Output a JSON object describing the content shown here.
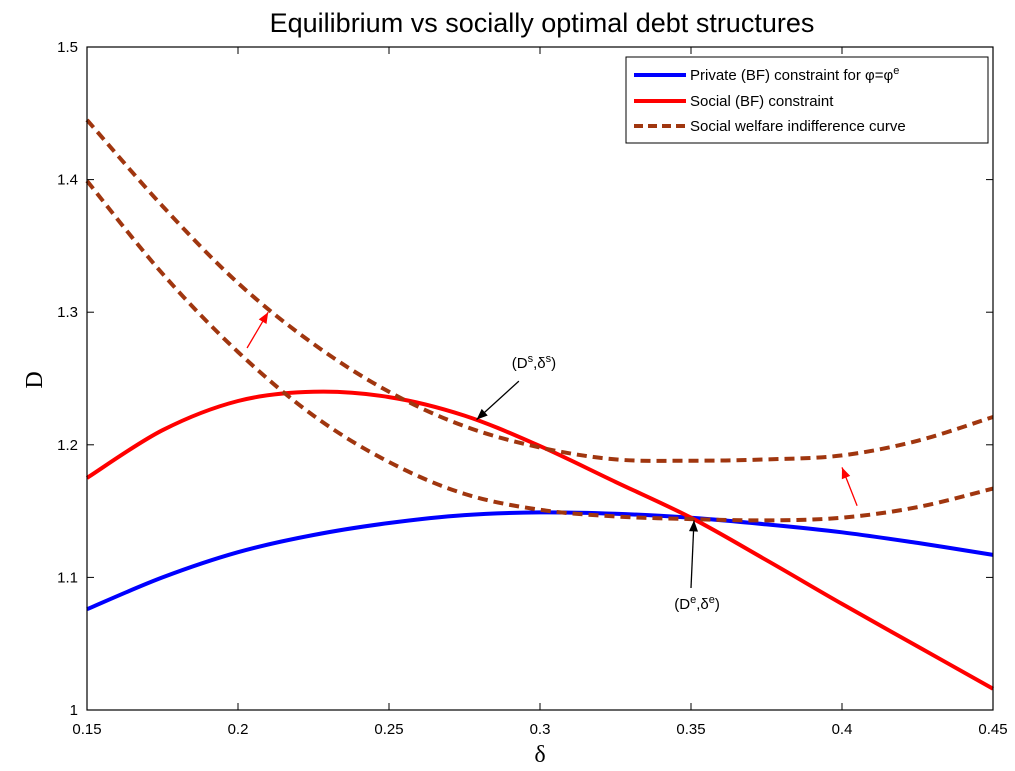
{
  "chart_data": {
    "type": "line",
    "title": "Equilibrium vs socially optimal debt structures",
    "xlabel": "δ",
    "ylabel": "D",
    "xlim": [
      0.15,
      0.45
    ],
    "ylim": [
      1.0,
      1.5
    ],
    "xticks": [
      "0.15",
      "0.2",
      "0.25",
      "0.3",
      "0.35",
      "0.4",
      "0.45"
    ],
    "yticks": [
      "1",
      "1.1",
      "1.2",
      "1.3",
      "1.4",
      "1.5"
    ],
    "grid": false,
    "legend_position": "top-right",
    "series": [
      {
        "name": "Private (BF) constraint for φ=φ",
        "name_sup": "e",
        "color": "#0000ff",
        "style": "solid",
        "x": [
          0.15,
          0.175,
          0.2,
          0.225,
          0.25,
          0.275,
          0.3,
          0.325,
          0.35,
          0.375,
          0.4,
          0.425,
          0.45
        ],
        "y": [
          1.076,
          1.1,
          1.119,
          1.132,
          1.141,
          1.147,
          1.149,
          1.148,
          1.145,
          1.14,
          1.134,
          1.126,
          1.117
        ]
      },
      {
        "name": "Social (BF) constraint",
        "color": "#ff0000",
        "style": "solid",
        "x": [
          0.15,
          0.175,
          0.2,
          0.225,
          0.25,
          0.275,
          0.3,
          0.325,
          0.35,
          0.375,
          0.4,
          0.425,
          0.45
        ],
        "y": [
          1.175,
          1.211,
          1.233,
          1.24,
          1.236,
          1.222,
          1.199,
          1.172,
          1.145,
          1.113,
          1.08,
          1.048,
          1.016
        ]
      },
      {
        "name": "Social welfare indifference curve",
        "color": "#a0360f",
        "style": "dashed",
        "x": [
          0.15,
          0.175,
          0.2,
          0.225,
          0.25,
          0.275,
          0.3,
          0.325,
          0.35,
          0.375,
          0.4,
          0.425,
          0.45
        ],
        "y": [
          1.445,
          1.38,
          1.322,
          1.276,
          1.24,
          1.214,
          1.198,
          1.189,
          1.188,
          1.189,
          1.192,
          1.203,
          1.221
        ]
      },
      {
        "name": "",
        "color": "#a0360f",
        "style": "dashed",
        "x": [
          0.15,
          0.175,
          0.2,
          0.225,
          0.25,
          0.275,
          0.3,
          0.325,
          0.35,
          0.375,
          0.4,
          0.425,
          0.45
        ],
        "y": [
          1.399,
          1.329,
          1.27,
          1.222,
          1.187,
          1.163,
          1.151,
          1.146,
          1.144,
          1.143,
          1.145,
          1.153,
          1.167
        ]
      }
    ],
    "annotations": [
      {
        "id": "social-optimum",
        "base": "(D",
        "sup1": "s",
        "mid": ",δ",
        "sup2": "s",
        "end": ")",
        "text_x": 0.298,
        "text_y": 1.258,
        "arrow_from": [
          0.293,
          1.248
        ],
        "arrow_to": [
          0.279,
          1.219
        ],
        "arrow_color": "#000000"
      },
      {
        "id": "equilibrium",
        "base": "(D",
        "sup1": "e",
        "mid": ",δ",
        "sup2": "e",
        "end": ")",
        "text_x": 0.352,
        "text_y": 1.076,
        "arrow_from": [
          0.35,
          1.092
        ],
        "arrow_to": [
          0.351,
          1.143
        ],
        "arrow_color": "#000000"
      }
    ],
    "direction_arrows": [
      {
        "from": [
          0.203,
          1.273
        ],
        "to": [
          0.21,
          1.3
        ],
        "color": "#ff0000"
      },
      {
        "from": [
          0.405,
          1.154
        ],
        "to": [
          0.4,
          1.183
        ],
        "color": "#ff0000"
      }
    ]
  }
}
